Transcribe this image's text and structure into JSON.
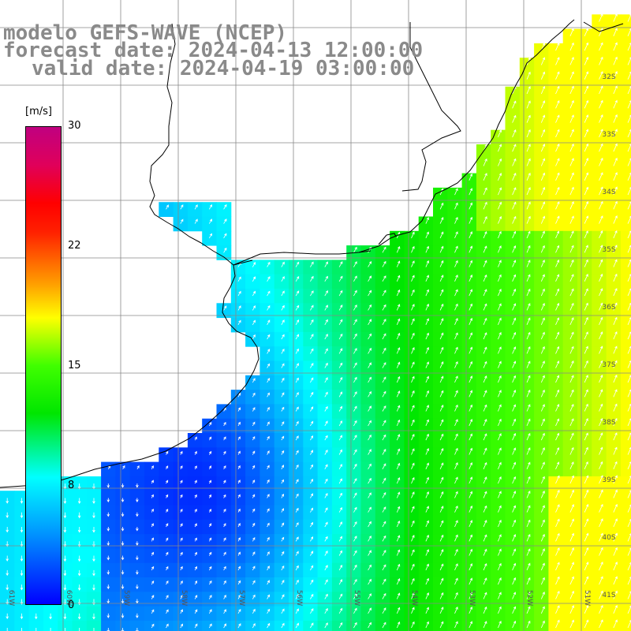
{
  "title": {
    "model": "modelo GEFS-WAVE (NCEP)",
    "forecast": "forecast date: 2024-04-13 12:00:00",
    "valid": "valid date: 2024-04-19 03:00:00"
  },
  "colorbar": {
    "units": "[m/s]",
    "ticks": [
      "30",
      "22",
      "15",
      "8",
      "0"
    ],
    "min": 0,
    "max": 30
  },
  "lat_labels": [
    "32S",
    "33S",
    "34S",
    "35S",
    "36S",
    "37S",
    "38S",
    "39S",
    "40S",
    "41S"
  ],
  "lon_labels": [
    "61W",
    "60W",
    "59W",
    "58W",
    "57W",
    "56W",
    "55W",
    "54W",
    "53W",
    "52W",
    "51W"
  ],
  "colors": {
    "land": "#ffffff",
    "grid": "#888888",
    "coast": "#000000",
    "arrow": "#ffffff",
    "title_text": "#8a8a8a"
  }
}
